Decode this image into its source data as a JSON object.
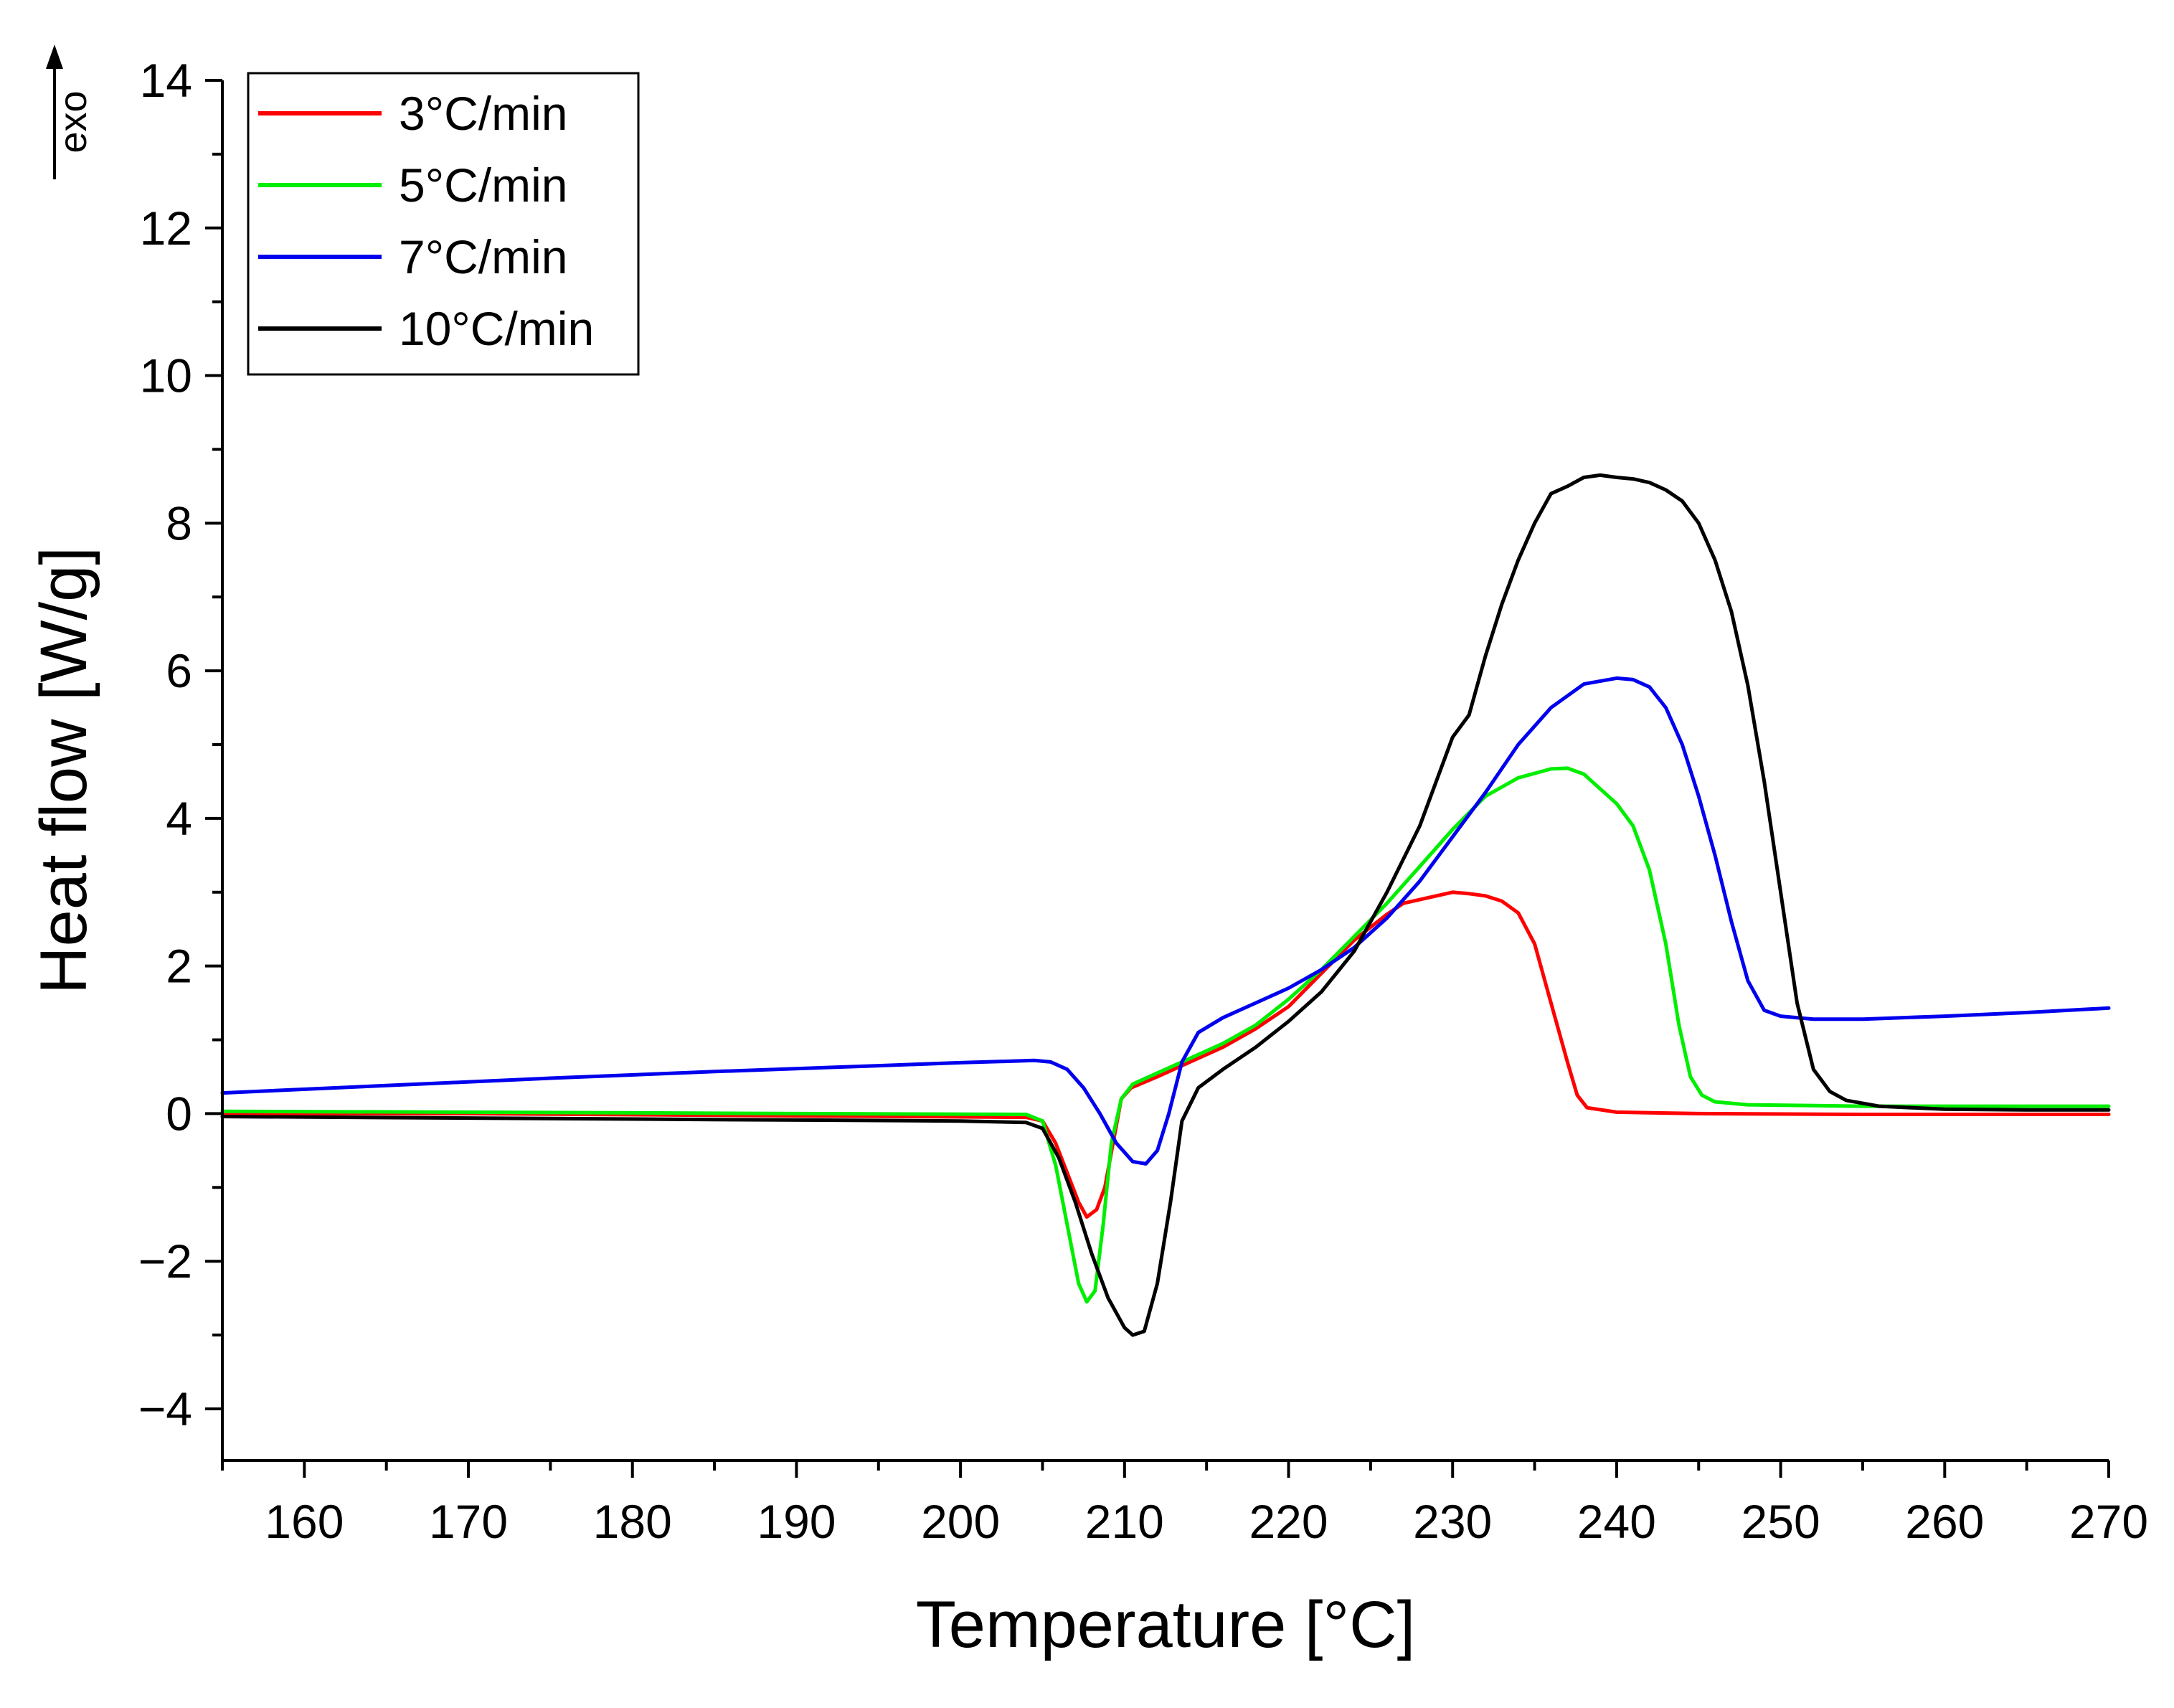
{
  "chart_data": {
    "type": "line",
    "title": "",
    "xlabel": "Temperature [°C]",
    "ylabel": "Heat flow [W/g]",
    "exo_label": "exo",
    "xlim": [
      155,
      270
    ],
    "ylim": [
      -4.7,
      14
    ],
    "xticks": [
      160,
      170,
      180,
      190,
      200,
      210,
      220,
      230,
      240,
      250,
      260,
      270
    ],
    "yticks": [
      -4,
      -2,
      0,
      2,
      4,
      6,
      8,
      10,
      12,
      14
    ],
    "xtick_labels": [
      "160",
      "170",
      "180",
      "190",
      "200",
      "210",
      "220",
      "230",
      "240",
      "250",
      "260",
      "270"
    ],
    "ytick_labels": [
      "−4",
      "−2",
      "0",
      "2",
      "4",
      "6",
      "8",
      "10",
      "12",
      "14"
    ],
    "grid": false,
    "legend_position": "top-left",
    "series": [
      {
        "name": "3°C/min",
        "color": "#ff0000",
        "points": [
          [
            155,
            0.0
          ],
          [
            170,
            0.0
          ],
          [
            190,
            -0.03
          ],
          [
            204,
            -0.05
          ],
          [
            205,
            -0.1
          ],
          [
            205.8,
            -0.4
          ],
          [
            206.5,
            -0.8
          ],
          [
            207.2,
            -1.2
          ],
          [
            207.7,
            -1.4
          ],
          [
            208.3,
            -1.3
          ],
          [
            208.8,
            -1.0
          ],
          [
            209.3,
            -0.4
          ],
          [
            209.8,
            0.2
          ],
          [
            210.4,
            0.35
          ],
          [
            212,
            0.5
          ],
          [
            214,
            0.7
          ],
          [
            216,
            0.9
          ],
          [
            218,
            1.15
          ],
          [
            220,
            1.45
          ],
          [
            222,
            1.9
          ],
          [
            224,
            2.35
          ],
          [
            226,
            2.7
          ],
          [
            227,
            2.85
          ],
          [
            228,
            2.9
          ],
          [
            229,
            2.95
          ],
          [
            230,
            3.0
          ],
          [
            231,
            2.98
          ],
          [
            232,
            2.95
          ],
          [
            233,
            2.88
          ],
          [
            234,
            2.72
          ],
          [
            235,
            2.3
          ],
          [
            236,
            1.5
          ],
          [
            237,
            0.7
          ],
          [
            237.6,
            0.25
          ],
          [
            238.2,
            0.08
          ],
          [
            240,
            0.02
          ],
          [
            245,
            0.0
          ],
          [
            255,
            -0.01
          ],
          [
            270,
            -0.01
          ]
        ]
      },
      {
        "name": "5°C/min",
        "color": "#00ee00",
        "points": [
          [
            155,
            0.03
          ],
          [
            170,
            0.02
          ],
          [
            190,
            0.0
          ],
          [
            204,
            -0.01
          ],
          [
            205,
            -0.1
          ],
          [
            205.8,
            -0.7
          ],
          [
            206.5,
            -1.5
          ],
          [
            207.2,
            -2.3
          ],
          [
            207.7,
            -2.55
          ],
          [
            208.2,
            -2.4
          ],
          [
            208.7,
            -1.5
          ],
          [
            209.2,
            -0.4
          ],
          [
            209.8,
            0.2
          ],
          [
            210.5,
            0.4
          ],
          [
            212,
            0.55
          ],
          [
            214,
            0.75
          ],
          [
            216,
            0.95
          ],
          [
            218,
            1.2
          ],
          [
            220,
            1.55
          ],
          [
            222,
            1.95
          ],
          [
            224,
            2.4
          ],
          [
            226,
            2.85
          ],
          [
            228,
            3.35
          ],
          [
            230,
            3.85
          ],
          [
            232,
            4.3
          ],
          [
            234,
            4.55
          ],
          [
            236,
            4.67
          ],
          [
            237,
            4.68
          ],
          [
            238,
            4.6
          ],
          [
            239,
            4.4
          ],
          [
            240,
            4.2
          ],
          [
            241,
            3.9
          ],
          [
            242,
            3.3
          ],
          [
            243,
            2.3
          ],
          [
            243.8,
            1.2
          ],
          [
            244.5,
            0.5
          ],
          [
            245.2,
            0.25
          ],
          [
            246,
            0.16
          ],
          [
            248,
            0.12
          ],
          [
            255,
            0.1
          ],
          [
            270,
            0.1
          ]
        ]
      },
      {
        "name": "7°C/min",
        "color": "#0000ee",
        "points": [
          [
            155,
            0.28
          ],
          [
            165,
            0.38
          ],
          [
            175,
            0.48
          ],
          [
            185,
            0.57
          ],
          [
            195,
            0.65
          ],
          [
            200,
            0.69
          ],
          [
            203,
            0.71
          ],
          [
            204.5,
            0.72
          ],
          [
            205.5,
            0.7
          ],
          [
            206.5,
            0.6
          ],
          [
            207.5,
            0.35
          ],
          [
            208.5,
            0.0
          ],
          [
            209.5,
            -0.4
          ],
          [
            210.5,
            -0.65
          ],
          [
            211.3,
            -0.68
          ],
          [
            212,
            -0.5
          ],
          [
            212.7,
            0.0
          ],
          [
            213.5,
            0.7
          ],
          [
            214.5,
            1.1
          ],
          [
            216,
            1.3
          ],
          [
            218,
            1.5
          ],
          [
            220,
            1.7
          ],
          [
            222,
            1.95
          ],
          [
            224,
            2.25
          ],
          [
            226,
            2.65
          ],
          [
            228,
            3.15
          ],
          [
            230,
            3.75
          ],
          [
            232,
            4.35
          ],
          [
            234,
            5.0
          ],
          [
            236,
            5.5
          ],
          [
            238,
            5.82
          ],
          [
            240,
            5.9
          ],
          [
            241,
            5.88
          ],
          [
            242,
            5.78
          ],
          [
            243,
            5.5
          ],
          [
            244,
            5.0
          ],
          [
            245,
            4.3
          ],
          [
            246,
            3.5
          ],
          [
            247,
            2.6
          ],
          [
            248,
            1.8
          ],
          [
            249,
            1.4
          ],
          [
            250,
            1.32
          ],
          [
            252,
            1.28
          ],
          [
            255,
            1.28
          ],
          [
            260,
            1.32
          ],
          [
            265,
            1.37
          ],
          [
            270,
            1.43
          ]
        ]
      },
      {
        "name": "10°C/min",
        "color": "#000000",
        "points": [
          [
            155,
            -0.04
          ],
          [
            170,
            -0.06
          ],
          [
            185,
            -0.08
          ],
          [
            200,
            -0.1
          ],
          [
            204,
            -0.12
          ],
          [
            205,
            -0.2
          ],
          [
            206,
            -0.6
          ],
          [
            207,
            -1.2
          ],
          [
            208,
            -1.9
          ],
          [
            209,
            -2.5
          ],
          [
            210,
            -2.9
          ],
          [
            210.5,
            -3.0
          ],
          [
            211.2,
            -2.95
          ],
          [
            212,
            -2.3
          ],
          [
            212.8,
            -1.2
          ],
          [
            213.5,
            -0.1
          ],
          [
            214.5,
            0.35
          ],
          [
            216,
            0.6
          ],
          [
            218,
            0.9
          ],
          [
            220,
            1.25
          ],
          [
            222,
            1.65
          ],
          [
            224,
            2.2
          ],
          [
            226,
            3.0
          ],
          [
            228,
            3.9
          ],
          [
            230,
            5.1
          ],
          [
            231,
            5.4
          ],
          [
            232,
            6.2
          ],
          [
            233,
            6.9
          ],
          [
            234,
            7.5
          ],
          [
            235,
            8.0
          ],
          [
            236,
            8.4
          ],
          [
            237,
            8.5
          ],
          [
            238,
            8.62
          ],
          [
            239,
            8.65
          ],
          [
            240,
            8.62
          ],
          [
            241,
            8.6
          ],
          [
            242,
            8.55
          ],
          [
            243,
            8.45
          ],
          [
            244,
            8.3
          ],
          [
            245,
            8.0
          ],
          [
            246,
            7.5
          ],
          [
            247,
            6.8
          ],
          [
            248,
            5.8
          ],
          [
            249,
            4.5
          ],
          [
            250,
            3.0
          ],
          [
            251,
            1.5
          ],
          [
            252,
            0.6
          ],
          [
            253,
            0.3
          ],
          [
            254,
            0.18
          ],
          [
            256,
            0.1
          ],
          [
            260,
            0.06
          ],
          [
            265,
            0.05
          ],
          [
            270,
            0.05
          ]
        ]
      }
    ]
  }
}
